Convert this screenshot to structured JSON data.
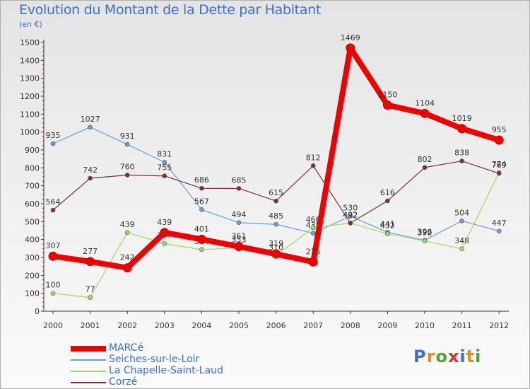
{
  "title": "Evolution du Montant de la Dette par Habitant",
  "subtitle": "(en €)",
  "logo": {
    "text": "Proxiti",
    "colors": [
      "#3b6fd1",
      "#e98b1b",
      "#4aa63a",
      "#e22d2d",
      "#3b6fd1",
      "#e98b1b",
      "#4aa63a"
    ]
  },
  "chart_data": {
    "type": "line",
    "title": "Evolution du Montant de la Dette par Habitant",
    "ylabel": "(en €)",
    "categories": [
      "2000",
      "2001",
      "2002",
      "2003",
      "2004",
      "2005",
      "2006",
      "2007",
      "2008",
      "2009",
      "2010",
      "2011",
      "2012"
    ],
    "ylim": [
      0,
      1500
    ],
    "yticks": [
      0,
      100,
      200,
      300,
      400,
      500,
      600,
      700,
      800,
      900,
      1000,
      1100,
      1200,
      1300,
      1400,
      1500
    ],
    "grid": false,
    "legend_position": "bottom-left",
    "series": [
      {
        "name": "MARCé",
        "color": "#ee0000",
        "values": [
          307,
          277,
          242,
          439,
          401,
          361,
          319,
          275,
          1469,
          1150,
          1104,
          1019,
          955
        ]
      },
      {
        "name": "Seiches-sur-le-Loir",
        "color": "#6ba0d2",
        "values": [
          935,
          1027,
          931,
          831,
          567,
          494,
          485,
          435,
          530,
          441,
          396,
          504,
          447
        ]
      },
      {
        "name": "La Chapelle-Saint-Laud",
        "color": "#99dd66",
        "values": [
          100,
          77,
          439,
          377,
          344,
          353,
          310,
          466,
          492,
          432,
          392,
          348,
          774
        ]
      },
      {
        "name": "Corzé",
        "color": "#7a3232",
        "values": [
          564,
          742,
          760,
          755,
          686,
          685,
          615,
          812,
          492,
          616,
          802,
          838,
          769
        ]
      }
    ]
  }
}
